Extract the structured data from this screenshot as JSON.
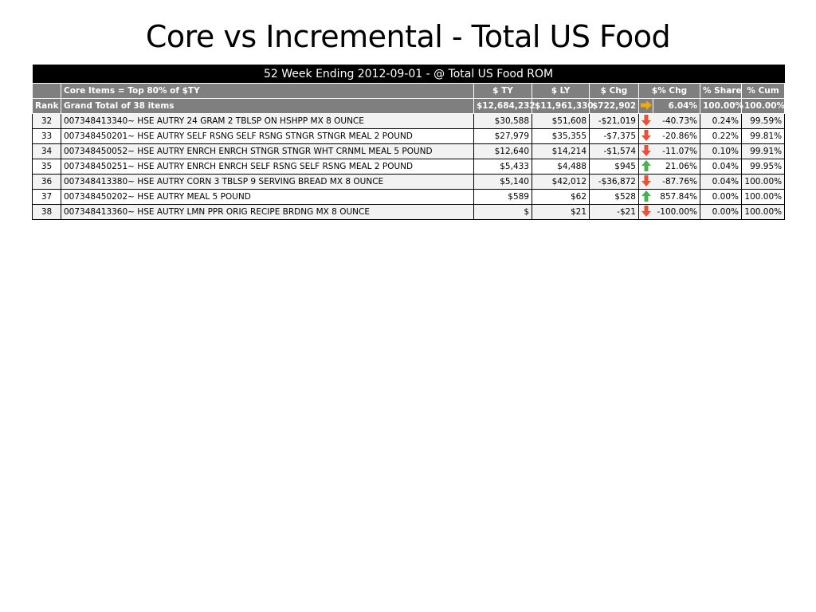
{
  "slide": {
    "title": "Core vs Incremental -  Total US Food"
  },
  "table": {
    "banner": "52 Week Ending 2012-09-01 -  @  Total US Food ROM",
    "header": {
      "rank": "",
      "item": "Core Items = Top 80% of $TY",
      "ty": "$ TY",
      "ly": "$ LY",
      "chg": "$ Chg",
      "pct_chg": "$% Chg",
      "share": "% Share",
      "cum": "% Cum"
    },
    "total": {
      "rank": "Rank",
      "item": "Grand Total of 38 items",
      "ty": "$12,684,232",
      "ly": "$11,961,330",
      "chg": "$722,902",
      "trend": "right-arrow-icon",
      "pct_chg": "6.04%",
      "share": "100.00%",
      "cum": "100.00%"
    },
    "rows": [
      {
        "rank": "32",
        "item": "007348413340~ HSE AUTRY 24 GRAM 2 TBLSP ON HSHPP MX 8 OUNCE",
        "ty": "$30,588",
        "ly": "$51,608",
        "chg": "-$21,019",
        "trend": "down-arrow-icon",
        "pct_chg": "-40.73%",
        "share": "0.24%",
        "cum": "99.59%"
      },
      {
        "rank": "33",
        "item": "007348450201~ HSE AUTRY SELF RSNG SELF RSNG STNGR STNGR MEAL 2 POUND",
        "ty": "$27,979",
        "ly": "$35,355",
        "chg": "-$7,375",
        "trend": "down-arrow-icon",
        "pct_chg": "-20.86%",
        "share": "0.22%",
        "cum": "99.81%"
      },
      {
        "rank": "34",
        "item": "007348450052~ HSE AUTRY ENRCH ENRCH STNGR STNGR WHT CRNML MEAL 5 POUND",
        "ty": "$12,640",
        "ly": "$14,214",
        "chg": "-$1,574",
        "trend": "down-arrow-icon",
        "pct_chg": "-11.07%",
        "share": "0.10%",
        "cum": "99.91%"
      },
      {
        "rank": "35",
        "item": "007348450251~ HSE AUTRY ENRCH ENRCH SELF RSNG SELF RSNG MEAL 2 POUND",
        "ty": "$5,433",
        "ly": "$4,488",
        "chg": "$945",
        "trend": "up-arrow-icon",
        "pct_chg": "21.06%",
        "share": "0.04%",
        "cum": "99.95%"
      },
      {
        "rank": "36",
        "item": "007348413380~ HSE AUTRY CORN 3 TBLSP 9 SERVING BREAD MX 8 OUNCE",
        "ty": "$5,140",
        "ly": "$42,012",
        "chg": "-$36,872",
        "trend": "down-arrow-icon",
        "pct_chg": "-87.76%",
        "share": "0.04%",
        "cum": "100.00%"
      },
      {
        "rank": "37",
        "item": "007348450202~ HSE AUTRY MEAL 5 POUND",
        "ty": "$589",
        "ly": "$62",
        "chg": "$528",
        "trend": "up-arrow-icon",
        "pct_chg": "857.84%",
        "share": "0.00%",
        "cum": "100.00%"
      },
      {
        "rank": "38",
        "item": "007348413360~ HSE AUTRY LMN PPR ORIG RECIPE BRDNG MX 8 OUNCE",
        "ty": "$",
        "ly": "$21",
        "chg": "-$21",
        "trend": "down-arrow-icon",
        "pct_chg": "-100.00%",
        "share": "0.00%",
        "cum": "100.00%"
      }
    ]
  },
  "colors": {
    "banner_bg": "#000000",
    "header_bg": "#7f7f7f",
    "arrow_down": "#e8503a",
    "arrow_up": "#4caf50",
    "arrow_right": "#f2a900"
  }
}
